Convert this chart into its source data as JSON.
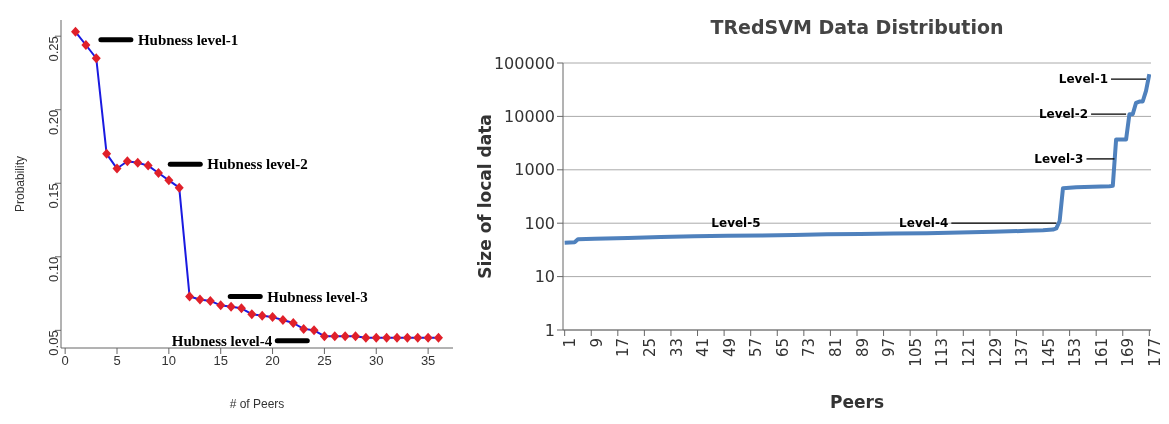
{
  "chart_data": [
    {
      "type": "line",
      "xlabel": "# of Peers",
      "ylabel": "Probability",
      "marker": "diamond",
      "line_style": "solid",
      "color": "#1a1ae0",
      "x": [
        1,
        2,
        3,
        4,
        5,
        6,
        7,
        8,
        9,
        10,
        11,
        12,
        13,
        14,
        15,
        16,
        17,
        18,
        19,
        20,
        21,
        22,
        23,
        24,
        25,
        26,
        27,
        28,
        29,
        30,
        31,
        32,
        33,
        34,
        35,
        36
      ],
      "values": [
        0.253,
        0.244,
        0.235,
        0.17,
        0.16,
        0.165,
        0.164,
        0.162,
        0.157,
        0.152,
        0.147,
        0.073,
        0.071,
        0.07,
        0.067,
        0.066,
        0.065,
        0.061,
        0.06,
        0.059,
        0.057,
        0.055,
        0.051,
        0.05,
        0.046,
        0.046,
        0.046,
        0.046,
        0.045,
        0.045,
        0.045,
        0.045,
        0.045,
        0.045,
        0.045,
        0.045
      ],
      "colors": [
        "#e0202a",
        "#e0202a",
        "#e0202a",
        "#e0202a",
        "#e0202a",
        "#e0202a",
        "#e0202a",
        "#e0202a",
        "#e0202a",
        "#e0202a",
        "#e0202a",
        "#e0202a",
        "#e0202a",
        "#e0202a",
        "#e0202a",
        "#e0202a",
        "#e0202a",
        "#e0202a",
        "#e0202a",
        "#e0202a",
        "#e0202a",
        "#e0202a",
        "#e0202a",
        "#e0202a",
        "#e0202a",
        "#e0202a",
        "#e0202a",
        "#e0202a",
        "#e0202a",
        "#e0202a",
        "#e0202a",
        "#e0202a",
        "#e0202a",
        "#e0202a",
        "#e0202a",
        "#e0202a"
      ],
      "xlim": [
        -0.4,
        37.4
      ],
      "ylim": [
        0.038,
        0.261
      ],
      "xticks": [
        0,
        5,
        10,
        15,
        20,
        25,
        30,
        35
      ],
      "yticks": [
        0.05,
        {
          "value": 0.1,
          "label": "0.10"
        },
        0.15,
        {
          "value": 0.2,
          "label": "0.20"
        },
        0.25
      ],
      "annotations": [
        "Hubness level-1",
        "Hubness level-2",
        "Hubness level-3",
        "Hubness level-4"
      ]
    },
    {
      "type": "line",
      "title": "TRedSVM Data Distribution",
      "xlabel": "Peers",
      "ylabel": "Size of local data",
      "marker": "none",
      "line_style": "solid",
      "color": "#4f81bd",
      "log": true,
      "grid": "y",
      "x": [
        1,
        4,
        5,
        10,
        20,
        30,
        40,
        50,
        60,
        70,
        80,
        90,
        100,
        110,
        120,
        130,
        140,
        145,
        148,
        149,
        150,
        151,
        155,
        160,
        165,
        166,
        167,
        168,
        170,
        171,
        172,
        173,
        174,
        175,
        176,
        177
      ],
      "values": [
        43,
        44,
        50,
        51,
        53,
        55,
        57,
        58,
        59,
        60,
        62,
        63,
        64,
        65,
        67,
        69,
        72,
        74,
        76,
        80,
        110,
        450,
        470,
        480,
        490,
        500,
        3700,
        3700,
        3700,
        11000,
        11000,
        18000,
        19000,
        19000,
        30000,
        62000
      ],
      "xlim": [
        0.5,
        177.5
      ],
      "ylim": [
        1,
        100000
      ],
      "xticks": [
        1,
        9,
        17,
        25,
        33,
        41,
        49,
        57,
        65,
        73,
        81,
        89,
        97,
        105,
        113,
        121,
        129,
        137,
        145,
        153,
        161,
        169,
        177
      ],
      "yticks": [
        1,
        10,
        100,
        1000,
        10000,
        100000
      ],
      "annotations": [
        {
          "text": "Level-1",
          "x": 176,
          "y": 50000
        },
        {
          "text": "Level-2",
          "x": 170,
          "y": 11000
        },
        {
          "text": "Level-3",
          "x": 166.5,
          "y": 1600
        },
        {
          "text": "Level-4",
          "x": 149,
          "y": 100
        },
        "Level-5"
      ]
    }
  ]
}
